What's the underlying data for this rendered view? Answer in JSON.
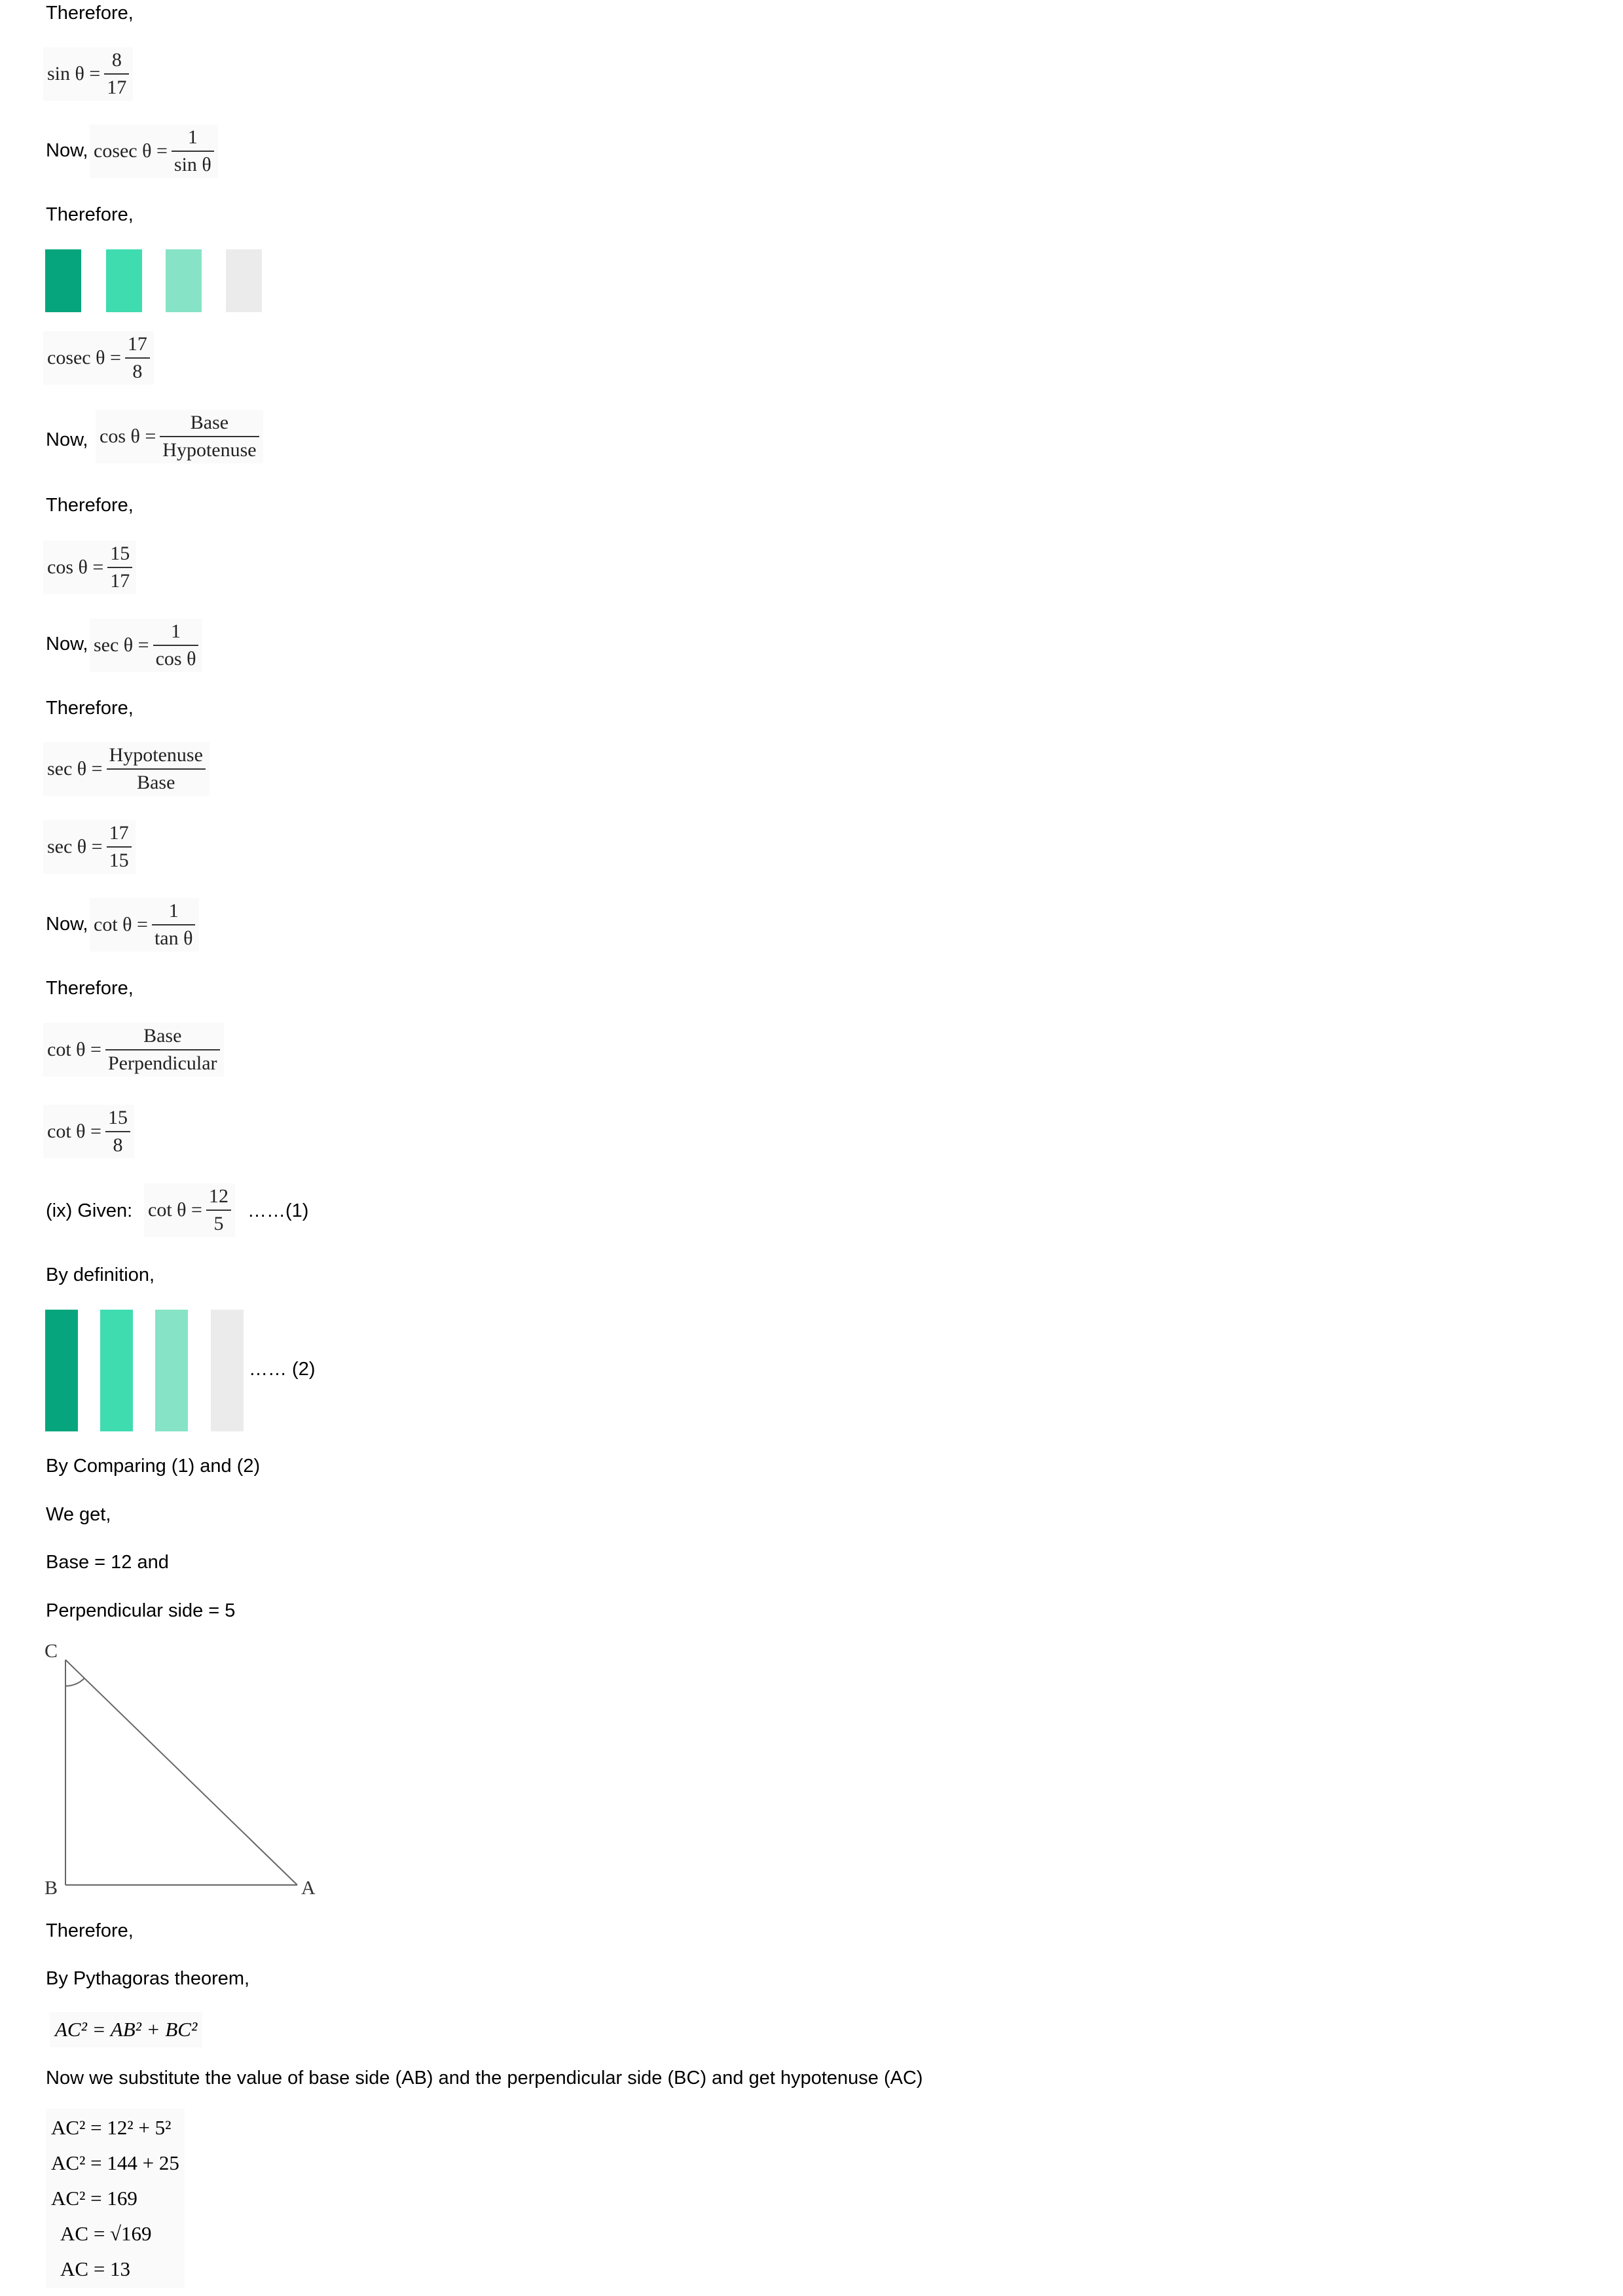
{
  "blocks": {
    "t1": "Therefore,",
    "eq_sin": {
      "lhs": "sin θ =",
      "num": "8",
      "den": "17"
    },
    "now1": "Now,",
    "eq_cosec_def": {
      "lhs": "cosec θ =",
      "num": "1",
      "den": "sin θ"
    },
    "t2": "Therefore,",
    "eq_cosec": {
      "lhs": "cosec θ =",
      "num": "17",
      "den": "8"
    },
    "now2": "Now,",
    "eq_cos_def": {
      "lhs": "cos θ =",
      "num": "Base",
      "den": "Hypotenuse"
    },
    "t3": "Therefore,",
    "eq_cos": {
      "lhs": "cos θ =",
      "num": "15",
      "den": "17"
    },
    "now3": "Now,",
    "eq_sec_def": {
      "lhs": "sec θ =",
      "num": "1",
      "den": "cos θ"
    },
    "t4": "Therefore,",
    "eq_sec_hb": {
      "lhs": "sec θ =",
      "num": "Hypotenuse",
      "den": "Base"
    },
    "eq_sec": {
      "lhs": "sec θ =",
      "num": "17",
      "den": "15"
    },
    "now4": "Now,",
    "eq_cot_def": {
      "lhs": "cot θ =",
      "num": "1",
      "den": "tan θ"
    },
    "t5": "Therefore,",
    "eq_cot_bp": {
      "lhs": "cot θ =",
      "num": "Base",
      "den": "Perpendicular"
    },
    "eq_cot": {
      "lhs": "cot θ =",
      "num": "15",
      "den": "8"
    },
    "given_prefix": "(ix) Given:",
    "eq_given": {
      "lhs": "cot θ =",
      "num": "12",
      "den": "5"
    },
    "given_suffix": "……(1)",
    "by_def": "By definition,",
    "def_suffix": "…… (2)",
    "comparing": "By Comparing (1) and (2)",
    "we_get": "We get,",
    "base": "Base = 12 and",
    "perp": "Perpendicular side = 5",
    "t6": "Therefore,",
    "pythag": "By Pythagoras theorem,",
    "pythag_eq": "AC² = AB² + BC²",
    "substitute": "Now we substitute the value of base side (AB) and the perpendicular side (BC) and get hypotenuse (AC)",
    "steps": [
      "AC² = 12² + 5²",
      "AC² = 144 + 25",
      "AC² = 169",
      "AC = √169",
      "AC = 13"
    ]
  },
  "triangle": {
    "labels": {
      "c": "C",
      "b": "B",
      "a": "A"
    }
  },
  "colors": {
    "bar1": "#07a57d",
    "bar2": "#3fdcb0",
    "bar3": "#86e3c6",
    "bar4": "#ebebeb"
  }
}
